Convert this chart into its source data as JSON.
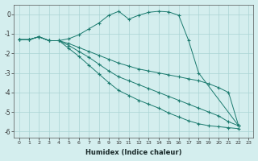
{
  "xlabel": "Humidex (Indice chaleur)",
  "background_color": "#d4eeee",
  "grid_color": "#aad4d4",
  "line_color": "#1a7a6e",
  "xlim": [
    -0.5,
    23.5
  ],
  "ylim": [
    -6.3,
    0.5
  ],
  "yticks": [
    0,
    -1,
    -2,
    -3,
    -4,
    -5,
    -6
  ],
  "xticks": [
    0,
    1,
    2,
    3,
    4,
    5,
    6,
    7,
    8,
    9,
    10,
    11,
    12,
    13,
    14,
    15,
    16,
    17,
    18,
    19,
    20,
    21,
    22,
    23
  ],
  "curve1_x": [
    0,
    1,
    2,
    3,
    4,
    5,
    6,
    7,
    8,
    9,
    10,
    11,
    12,
    13,
    14,
    15,
    16,
    17,
    18,
    22
  ],
  "curve1_y": [
    -1.3,
    -1.3,
    -1.15,
    -1.35,
    -1.35,
    -1.25,
    -1.05,
    -0.75,
    -0.45,
    -0.05,
    0.15,
    -0.25,
    -0.05,
    0.1,
    0.15,
    0.12,
    -0.05,
    -1.35,
    -3.0,
    -5.7
  ],
  "curve2_x": [
    0,
    1,
    2,
    3,
    4,
    5,
    6,
    7,
    8,
    9,
    10,
    11,
    12,
    13,
    14,
    15,
    16,
    17,
    18,
    19,
    20,
    21,
    22
  ],
  "curve2_y": [
    -1.3,
    -1.3,
    -1.15,
    -1.35,
    -1.35,
    -1.5,
    -1.7,
    -1.9,
    -2.1,
    -2.3,
    -2.5,
    -2.65,
    -2.8,
    -2.9,
    -3.0,
    -3.1,
    -3.2,
    -3.3,
    -3.4,
    -3.55,
    -3.75,
    -4.0,
    -5.7
  ],
  "curve3_x": [
    0,
    1,
    2,
    3,
    4,
    5,
    6,
    7,
    8,
    9,
    10,
    11,
    12,
    13,
    14,
    15,
    16,
    17,
    18,
    19,
    20,
    21,
    22
  ],
  "curve3_y": [
    -1.3,
    -1.3,
    -1.15,
    -1.35,
    -1.35,
    -1.6,
    -1.9,
    -2.2,
    -2.55,
    -2.9,
    -3.2,
    -3.4,
    -3.6,
    -3.8,
    -4.0,
    -4.2,
    -4.4,
    -4.6,
    -4.8,
    -5.0,
    -5.2,
    -5.5,
    -5.7
  ],
  "curve4_x": [
    0,
    1,
    2,
    3,
    4,
    5,
    6,
    7,
    8,
    9,
    10,
    11,
    12,
    13,
    14,
    15,
    16,
    17,
    18,
    19,
    20,
    21,
    22
  ],
  "curve4_y": [
    -1.3,
    -1.3,
    -1.15,
    -1.35,
    -1.35,
    -1.75,
    -2.15,
    -2.6,
    -3.05,
    -3.5,
    -3.9,
    -4.15,
    -4.4,
    -4.6,
    -4.8,
    -5.05,
    -5.25,
    -5.45,
    -5.6,
    -5.7,
    -5.75,
    -5.8,
    -5.85
  ]
}
